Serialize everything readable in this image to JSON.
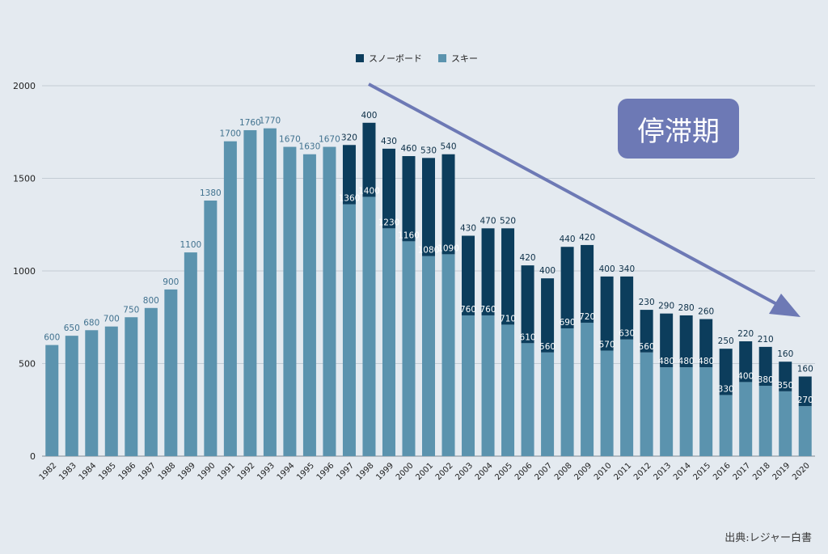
{
  "chart_data": {
    "type": "bar",
    "stacked": true,
    "categories": [
      "1982",
      "1983",
      "1984",
      "1985",
      "1986",
      "1987",
      "1988",
      "1989",
      "1990",
      "1991",
      "1992",
      "1993",
      "1994",
      "1995",
      "1996",
      "1997",
      "1998",
      "1999",
      "2000",
      "2001",
      "2002",
      "2003",
      "2004",
      "2005",
      "2006",
      "2007",
      "2008",
      "2009",
      "2010",
      "2011",
      "2012",
      "2013",
      "2014",
      "2015",
      "2016",
      "2017",
      "2018",
      "2019",
      "2020"
    ],
    "series": [
      {
        "name": "スキー",
        "color": "#5b93ae",
        "values": [
          600,
          650,
          680,
          700,
          750,
          800,
          900,
          1100,
          1380,
          1700,
          1760,
          1770,
          1670,
          1630,
          1670,
          1360,
          1400,
          1230,
          1160,
          1080,
          1090,
          760,
          760,
          710,
          610,
          560,
          690,
          720,
          570,
          630,
          560,
          480,
          480,
          480,
          330,
          400,
          380,
          350,
          270
        ]
      },
      {
        "name": "スノーボード",
        "color": "#0c3d5c",
        "values": [
          0,
          0,
          0,
          0,
          0,
          0,
          0,
          0,
          0,
          0,
          0,
          0,
          0,
          0,
          0,
          320,
          400,
          430,
          460,
          530,
          540,
          430,
          470,
          520,
          420,
          400,
          440,
          420,
          400,
          340,
          230,
          290,
          280,
          260,
          250,
          220,
          210,
          160,
          160
        ]
      }
    ],
    "yticks": [
      0,
      500,
      1000,
      1500,
      2000
    ],
    "ylim": [
      0,
      2000
    ],
    "grid": true,
    "legend_position": "top-center",
    "annotation": "停滞期",
    "source": "出典:レジャー白書"
  }
}
